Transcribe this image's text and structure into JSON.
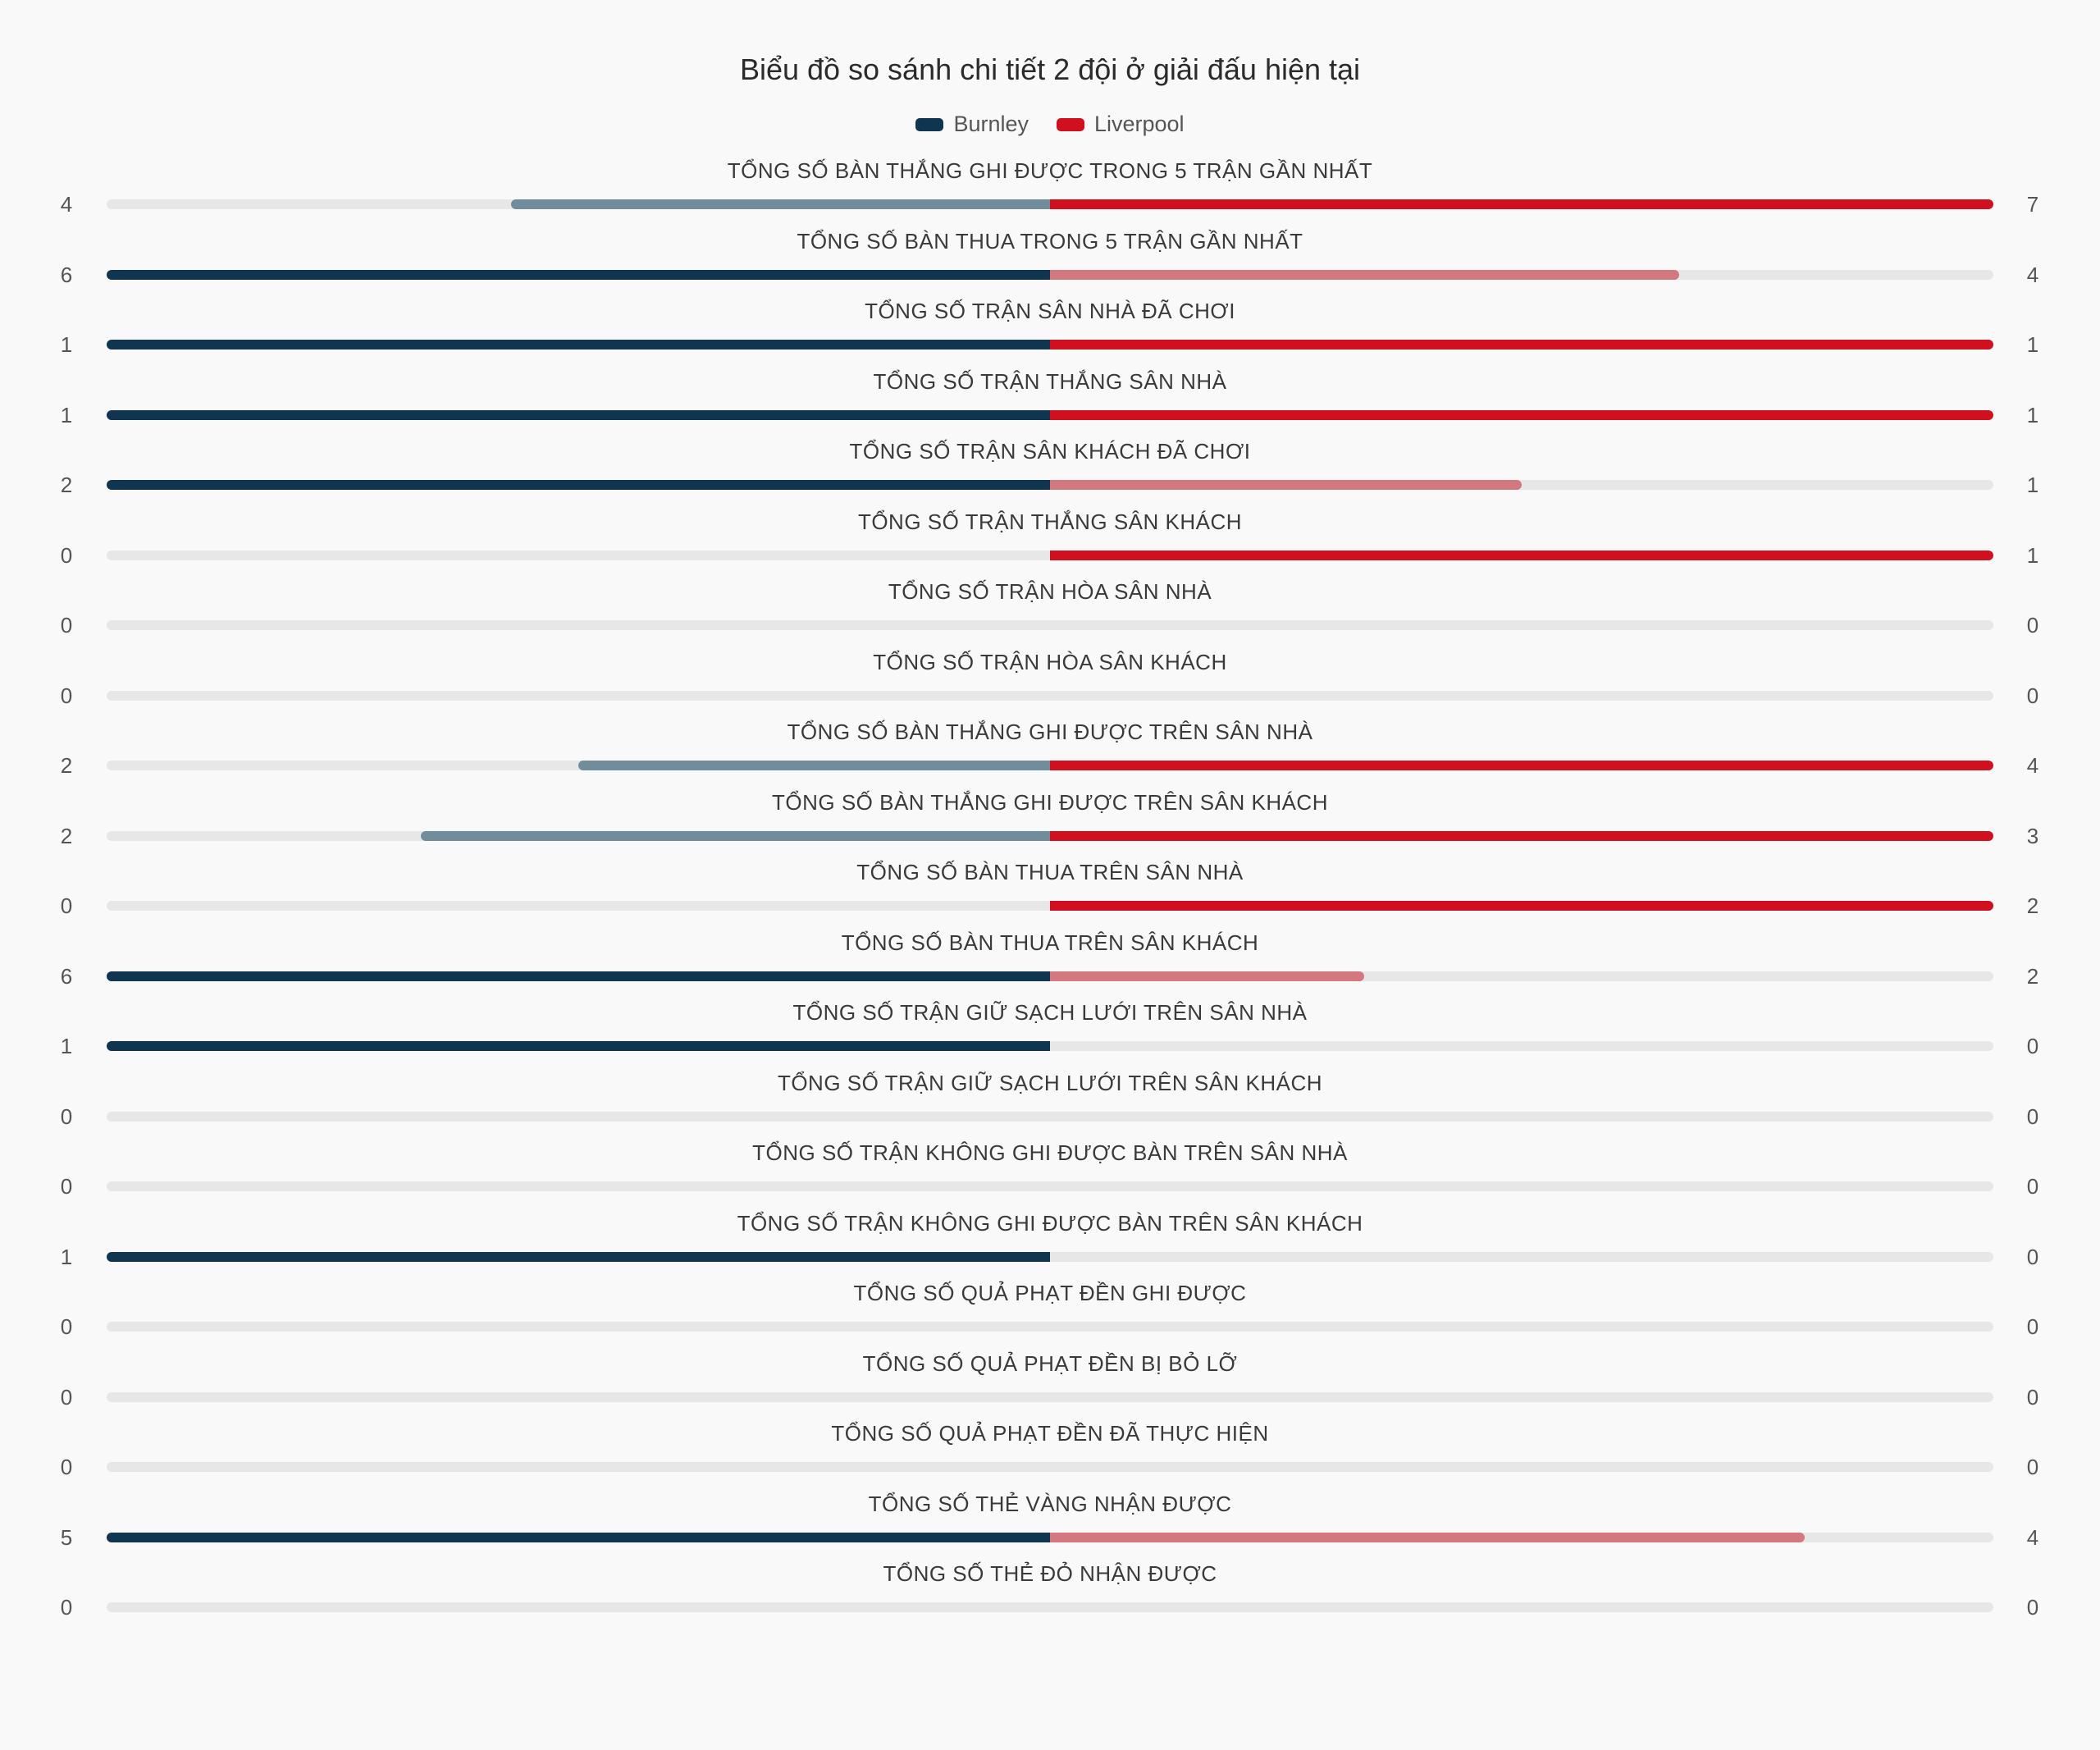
{
  "chart_data": {
    "type": "bar",
    "orientation": "diverging-horizontal",
    "title": "Biểu đồ so sánh chi tiết 2 đội ở giải đấu hiện tại",
    "legend": {
      "position": "top-center",
      "entries": [
        {
          "name": "Burnley",
          "color": "#0f3550"
        },
        {
          "name": "Liverpool",
          "color": "#d0101f"
        }
      ]
    },
    "colors": {
      "burnley_strong": "#0f3550",
      "burnley_light": "#718d9c",
      "liverpool_strong": "#d0101f",
      "liverpool_light": "#d3787e",
      "track": "#e7e7e7"
    },
    "categories": [
      "TỔNG SỐ BÀN THẮNG GHI ĐƯỢC TRONG 5 TRẬN GẦN NHẤT",
      "TỔNG SỐ BÀN THUA TRONG 5 TRẬN GẦN NHẤT",
      "TỔNG SỐ TRẬN SÂN NHÀ ĐÃ CHƠI",
      "TỔNG SỐ TRẬN THẮNG SÂN NHÀ",
      "TỔNG SỐ TRẬN SÂN KHÁCH ĐÃ CHƠI",
      "TỔNG SỐ TRẬN THẮNG SÂN KHÁCH",
      "TỔNG SỐ TRẬN HÒA SÂN NHÀ",
      "TỔNG SỐ TRẬN HÒA SÂN KHÁCH",
      "TỔNG SỐ BÀN THẮNG GHI ĐƯỢC TRÊN SÂN NHÀ",
      "TỔNG SỐ BÀN THẮNG GHI ĐƯỢC TRÊN SÂN KHÁCH",
      "TỔNG SỐ BÀN THUA TRÊN SÂN NHÀ",
      "TỔNG SỐ BÀN THUA TRÊN SÂN KHÁCH",
      "TỔNG SỐ TRẬN GIỮ SẠCH LƯỚI TRÊN SÂN NHÀ",
      "TỔNG SỐ TRẬN GIỮ SẠCH LƯỚI TRÊN SÂN KHÁCH",
      "TỔNG SỐ TRẬN KHÔNG GHI ĐƯỢC BÀN TRÊN SÂN NHÀ",
      "TỔNG SỐ TRẬN KHÔNG GHI ĐƯỢC BÀN TRÊN SÂN KHÁCH",
      "TỔNG SỐ QUẢ PHẠT ĐỀN GHI ĐƯỢC",
      "TỔNG SỐ QUẢ PHẠT ĐỀN BỊ BỎ LỠ",
      "TỔNG SỐ QUẢ PHẠT ĐỀN ĐÃ THỰC HIỆN",
      "TỔNG SỐ THẺ VÀNG NHẬN ĐƯỢC",
      "TỔNG SỐ THẺ ĐỎ NHẬN ĐƯỢC"
    ],
    "series": [
      {
        "name": "Burnley",
        "values": [
          4,
          6,
          1,
          1,
          2,
          0,
          0,
          0,
          2,
          2,
          0,
          6,
          1,
          0,
          0,
          1,
          0,
          0,
          0,
          5,
          0
        ]
      },
      {
        "name": "Liverpool",
        "values": [
          7,
          4,
          1,
          1,
          1,
          1,
          0,
          0,
          4,
          3,
          2,
          2,
          0,
          0,
          0,
          0,
          0,
          0,
          0,
          4,
          0
        ]
      }
    ]
  }
}
